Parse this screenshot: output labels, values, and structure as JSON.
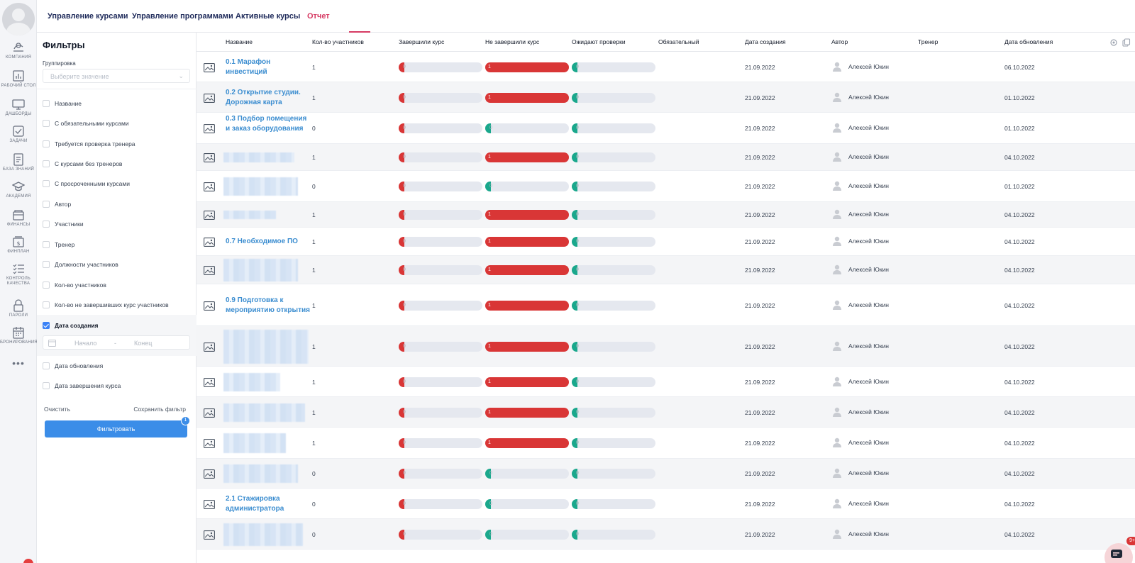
{
  "tabs": [
    {
      "label": "Управление курсами"
    },
    {
      "label": "Управление программами"
    },
    {
      "label": "Активные курсы"
    },
    {
      "label": "Отчет"
    }
  ],
  "sidebar": {
    "items": [
      {
        "label": "Компания",
        "icon": "company-icon"
      },
      {
        "label": "Рабочий стол",
        "icon": "desktop-chart-icon"
      },
      {
        "label": "Дашборды",
        "icon": "monitor-icon"
      },
      {
        "label": "Задачи",
        "icon": "checkbox-icon"
      },
      {
        "label": "База знаний",
        "icon": "document-icon"
      },
      {
        "label": "Академия",
        "icon": "graduation-cap-icon"
      },
      {
        "label": "Финансы",
        "icon": "wallet-icon"
      },
      {
        "label": "Финплан",
        "icon": "finplan-icon"
      },
      {
        "label": "Контроль качества",
        "icon": "checklist-icon"
      },
      {
        "label": "Пароли",
        "icon": "lock-icon"
      },
      {
        "label": "Бронирования",
        "icon": "calendar-icon"
      }
    ],
    "more": "•••"
  },
  "filters": {
    "title": "Фильтры",
    "grouping_label": "Группировка",
    "grouping_placeholder": "Выберите значение",
    "options": [
      {
        "label": "Название",
        "checked": false
      },
      {
        "label": "С обязательными курсами",
        "checked": false
      },
      {
        "label": "Требуется проверка тренера",
        "checked": false
      },
      {
        "label": "С курсами без тренеров",
        "checked": false
      },
      {
        "label": "С просроченными курсами",
        "checked": false
      },
      {
        "label": "Автор",
        "checked": false
      },
      {
        "label": "Участники",
        "checked": false
      },
      {
        "label": "Тренер",
        "checked": false
      },
      {
        "label": "Должности участников",
        "checked": false
      },
      {
        "label": "Кол-во участников",
        "checked": false
      },
      {
        "label": "Кол-во не завершивших курс участников",
        "checked": false
      },
      {
        "label": "Дата создания",
        "checked": true
      },
      {
        "label": "Дата обновления",
        "checked": false
      },
      {
        "label": "Дата завершения курса",
        "checked": false
      }
    ],
    "date_start_placeholder": "Начало",
    "date_separator": "-",
    "date_end_placeholder": "Конец",
    "clear_label": "Очистить",
    "save_label": "Сохранить фильтр",
    "apply_label": "Фильтровать",
    "apply_badge": "1"
  },
  "table": {
    "columns": [
      "Название",
      "Кол-во участников",
      "Завершили курс",
      "Не завершили курс",
      "Ожидают проверки",
      "Обязательный",
      "Дата создания",
      "Автор",
      "Тренер",
      "Дата обновления"
    ],
    "rows": [
      {
        "name": "0.1 Марафон инвестиций",
        "participants": "1",
        "completed": "0",
        "not_completed": "1",
        "pending": "0",
        "created": "21.09.2022",
        "author": "Алексей Юкин",
        "updated": "06.10.2022"
      },
      {
        "name": "0.2 Открытие студии. Дорожная карта",
        "participants": "1",
        "completed": "0",
        "not_completed": "1",
        "pending": "0",
        "created": "21.09.2022",
        "author": "Алексей Юкин",
        "updated": "01.10.2022"
      },
      {
        "name": "0.3 Подбор помещения и заказ оборудования",
        "participants": "0",
        "completed": "0",
        "not_completed": "0",
        "pending": "0",
        "created": "21.09.2022",
        "author": "Алексей Юкин",
        "updated": "01.10.2022"
      },
      {
        "name": "",
        "participants": "1",
        "completed": "0",
        "not_completed": "1",
        "pending": "0",
        "created": "21.09.2022",
        "author": "Алексей Юкин",
        "updated": "04.10.2022"
      },
      {
        "name": "",
        "participants": "0",
        "completed": "0",
        "not_completed": "0",
        "pending": "0",
        "created": "21.09.2022",
        "author": "Алексей Юкин",
        "updated": "01.10.2022"
      },
      {
        "name": "",
        "participants": "1",
        "completed": "0",
        "not_completed": "1",
        "pending": "0",
        "created": "21.09.2022",
        "author": "Алексей Юкин",
        "updated": "04.10.2022"
      },
      {
        "name": "0.7 Необходимое ПО",
        "participants": "1",
        "completed": "0",
        "not_completed": "1",
        "pending": "0",
        "created": "21.09.2022",
        "author": "Алексей Юкин",
        "updated": "04.10.2022"
      },
      {
        "name": "",
        "participants": "1",
        "completed": "0",
        "not_completed": "1",
        "pending": "0",
        "created": "21.09.2022",
        "author": "Алексей Юкин",
        "updated": "04.10.2022"
      },
      {
        "name": "0.9 Подготовка к мероприятию открытия",
        "participants": "1",
        "completed": "0",
        "not_completed": "1",
        "pending": "0",
        "created": "21.09.2022",
        "author": "Алексей Юкин",
        "updated": "04.10.2022"
      },
      {
        "name": "",
        "participants": "1",
        "completed": "0",
        "not_completed": "1",
        "pending": "0",
        "created": "21.09.2022",
        "author": "Алексей Юкин",
        "updated": "04.10.2022"
      },
      {
        "name": "",
        "participants": "1",
        "completed": "0",
        "not_completed": "1",
        "pending": "0",
        "created": "21.09.2022",
        "author": "Алексей Юкин",
        "updated": "04.10.2022"
      },
      {
        "name": "",
        "participants": "1",
        "completed": "0",
        "not_completed": "1",
        "pending": "0",
        "created": "21.09.2022",
        "author": "Алексей Юкин",
        "updated": "04.10.2022"
      },
      {
        "name": "",
        "participants": "1",
        "completed": "0",
        "not_completed": "1",
        "pending": "0",
        "created": "21.09.2022",
        "author": "Алексей Юкин",
        "updated": "04.10.2022"
      },
      {
        "name": "",
        "participants": "0",
        "completed": "0",
        "not_completed": "0",
        "pending": "0",
        "created": "21.09.2022",
        "author": "Алексей Юкин",
        "updated": "04.10.2022"
      },
      {
        "name": "2.1 Стажировка администратора",
        "participants": "0",
        "completed": "0",
        "not_completed": "0",
        "pending": "0",
        "created": "21.09.2022",
        "author": "Алексей Юкин",
        "updated": "04.10.2022"
      },
      {
        "name": "",
        "participants": "0",
        "completed": "0",
        "not_completed": "0",
        "pending": "0",
        "created": "21.09.2022",
        "author": "Алексей Юкин",
        "updated": "04.10.2022"
      }
    ]
  },
  "chat": {
    "badge": "9+"
  },
  "colors": {
    "accent": "#3b8de8",
    "active_tab": "#d63a63",
    "danger": "#d93636",
    "success": "#1aa88c",
    "link": "#3b8dd0"
  }
}
